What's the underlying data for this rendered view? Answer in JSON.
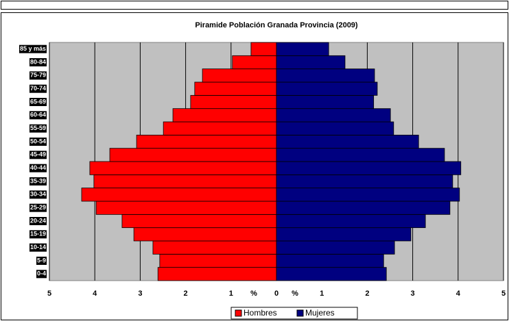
{
  "chart_data": {
    "type": "pyramid",
    "title": "Piramide Población Granada Provincia (2009)",
    "categories": [
      "0-4",
      "5-9",
      "10-14",
      "15-19",
      "20-24",
      "25-29",
      "30-34",
      "35-39",
      "40-44",
      "45-49",
      "50-54",
      "55-59",
      "60-64",
      "65-69",
      "70-74",
      "75-79",
      "80-84",
      "85 y más"
    ],
    "series": [
      {
        "name": "Hombres",
        "color": "#ff0000",
        "values": [
          -2.61,
          -2.57,
          -2.72,
          -3.14,
          -3.4,
          -3.97,
          -4.29,
          -4.02,
          -4.11,
          -3.67,
          -3.08,
          -2.49,
          -2.28,
          -1.89,
          -1.8,
          -1.63,
          -0.97,
          -0.56
        ]
      },
      {
        "name": "Mujeres",
        "color": "#000080",
        "values": [
          2.42,
          2.36,
          2.6,
          2.96,
          3.28,
          3.82,
          4.03,
          3.88,
          4.06,
          3.7,
          3.13,
          2.58,
          2.51,
          2.14,
          2.22,
          2.16,
          1.51,
          1.15
        ]
      }
    ],
    "xlim": [
      -5,
      5
    ],
    "xticks": [
      {
        "value": -5,
        "label": "5"
      },
      {
        "value": -4,
        "label": "4"
      },
      {
        "value": -3,
        "label": "3"
      },
      {
        "value": -2,
        "label": "2"
      },
      {
        "value": -1,
        "label": "1"
      },
      0,
      1,
      2,
      3,
      4,
      5
    ],
    "xunit": "%",
    "grid": true,
    "legend": "bottom"
  }
}
